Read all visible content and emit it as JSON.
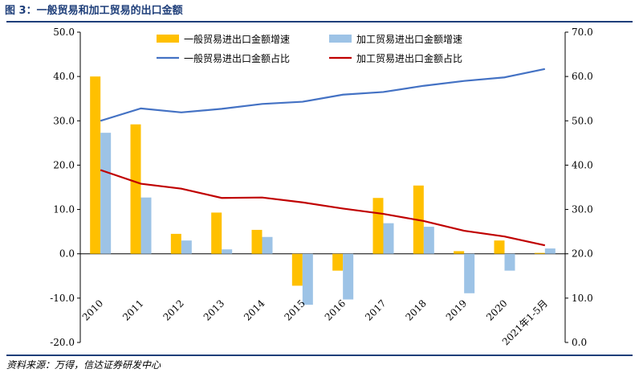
{
  "header": {
    "title": "图 3：一般贸易和加工贸易的出口金额"
  },
  "footer": {
    "source": "资料来源：万得，信达证券研发中心"
  },
  "chart_data": {
    "type": "bar",
    "categories": [
      "2010",
      "2011",
      "2012",
      "2013",
      "2014",
      "2015",
      "2016",
      "2017",
      "2018",
      "2019",
      "2020",
      "2021年1-5月"
    ],
    "y_left": {
      "lim": [
        -20,
        50
      ],
      "ticks": [
        -20,
        -10,
        0,
        10,
        20,
        30,
        40,
        50
      ],
      "tick_labels": [
        "-20.0",
        "-10.0",
        "0.0",
        "10.0",
        "20.0",
        "30.0",
        "40.0",
        "50.0"
      ]
    },
    "y_right": {
      "lim": [
        0,
        70
      ],
      "ticks": [
        0,
        10,
        20,
        30,
        40,
        50,
        60,
        70
      ],
      "tick_labels": [
        "0.0",
        "10.0",
        "20.0",
        "30.0",
        "40.0",
        "50.0",
        "60.0",
        "70.0"
      ]
    },
    "series": [
      {
        "name": "一般贸易进出口金额增速",
        "type": "bar",
        "axis": "left",
        "color": "#ffc000",
        "values": [
          40.0,
          29.2,
          4.5,
          9.3,
          5.4,
          -7.2,
          -3.8,
          12.6,
          15.4,
          0.6,
          3.0,
          0.2
        ]
      },
      {
        "name": "加工贸易进出口金额增速",
        "type": "bar",
        "axis": "left",
        "color": "#9dc3e6",
        "values": [
          27.3,
          12.7,
          3.0,
          1.0,
          3.8,
          -11.5,
          -10.3,
          6.9,
          6.1,
          -8.9,
          -3.8,
          1.2
        ]
      },
      {
        "name": "一般贸易进出口金额占比",
        "type": "line",
        "axis": "right",
        "color": "#4472c4",
        "values": [
          50.0,
          52.8,
          51.9,
          52.7,
          53.8,
          54.3,
          55.9,
          56.5,
          57.9,
          59.0,
          59.8,
          61.7
        ]
      },
      {
        "name": "加工贸易进出口金额占比",
        "type": "line",
        "axis": "right",
        "color": "#c00000",
        "values": [
          38.9,
          35.8,
          34.7,
          32.6,
          32.7,
          31.6,
          30.2,
          29.0,
          27.4,
          25.2,
          23.9,
          21.9
        ]
      }
    ],
    "legend": "top"
  }
}
